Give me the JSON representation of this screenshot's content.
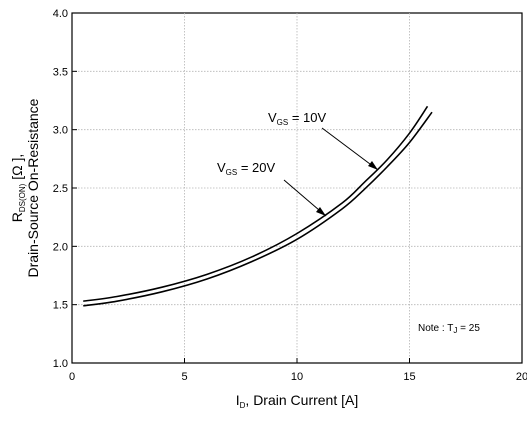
{
  "chart_data": {
    "type": "line",
    "title": "",
    "xlabel": {
      "main": "I",
      "sub": "D",
      "rest": ", Drain Current [A]"
    },
    "ylabel": {
      "line1_main": "R",
      "line1_sub": "DS(ON)",
      "line1_rest": " [Ω ],",
      "line2": "Drain-Source On-Resistance"
    },
    "xlim": [
      0,
      20
    ],
    "ylim": [
      1.0,
      4.0
    ],
    "x_ticks": [
      "0",
      "5",
      "10",
      "15",
      "20"
    ],
    "y_ticks": [
      "1.0",
      "1.5",
      "2.0",
      "2.5",
      "3.0",
      "3.5",
      "4.0"
    ],
    "grid": true,
    "series": [
      {
        "name": "VGS = 10V",
        "label": {
          "main": "V",
          "sub": "GS",
          "rest": " = 10V"
        },
        "x": [
          0.5,
          2,
          4,
          6,
          8,
          10,
          12,
          13,
          14,
          15,
          15.8
        ],
        "y": [
          1.53,
          1.57,
          1.65,
          1.76,
          1.91,
          2.11,
          2.37,
          2.55,
          2.74,
          2.97,
          3.2
        ]
      },
      {
        "name": "VGS = 20V",
        "label": {
          "main": "V",
          "sub": "GS",
          "rest": " = 20V"
        },
        "x": [
          0.5,
          2,
          4,
          6,
          8,
          10,
          12,
          13,
          14,
          15,
          16
        ],
        "y": [
          1.49,
          1.53,
          1.61,
          1.72,
          1.87,
          2.06,
          2.32,
          2.49,
          2.68,
          2.89,
          3.15
        ]
      }
    ],
    "annotations": [
      {
        "text": {
          "main": "Note : T",
          "sub": "J",
          "rest": " = 25"
        }
      }
    ]
  }
}
